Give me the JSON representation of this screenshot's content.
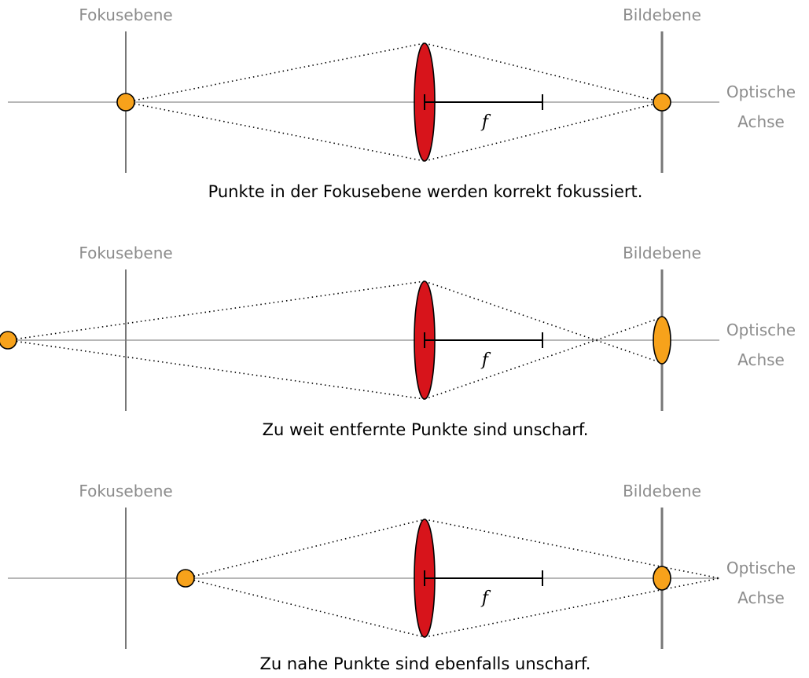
{
  "colors": {
    "lens": "#d7141b",
    "point": "#f7a21b",
    "axis": "#8c8c8c",
    "plane": "#777777",
    "label": "#8c8c8c",
    "text": "#000000"
  },
  "labels": {
    "focus_plane": "Fokusebene",
    "image_plane": "Bildebene",
    "optical_axis_line1": "Optische",
    "optical_axis_line2": "Achse",
    "focal_length": "f"
  },
  "panels": [
    {
      "caption": "Punkte in der Fokusebene werden korrekt fokussiert."
    },
    {
      "caption": "Zu weit entfernte Punkte sind unscharf."
    },
    {
      "caption": "Zu nahe Punkte sind ebenfalls unscharf."
    }
  ]
}
